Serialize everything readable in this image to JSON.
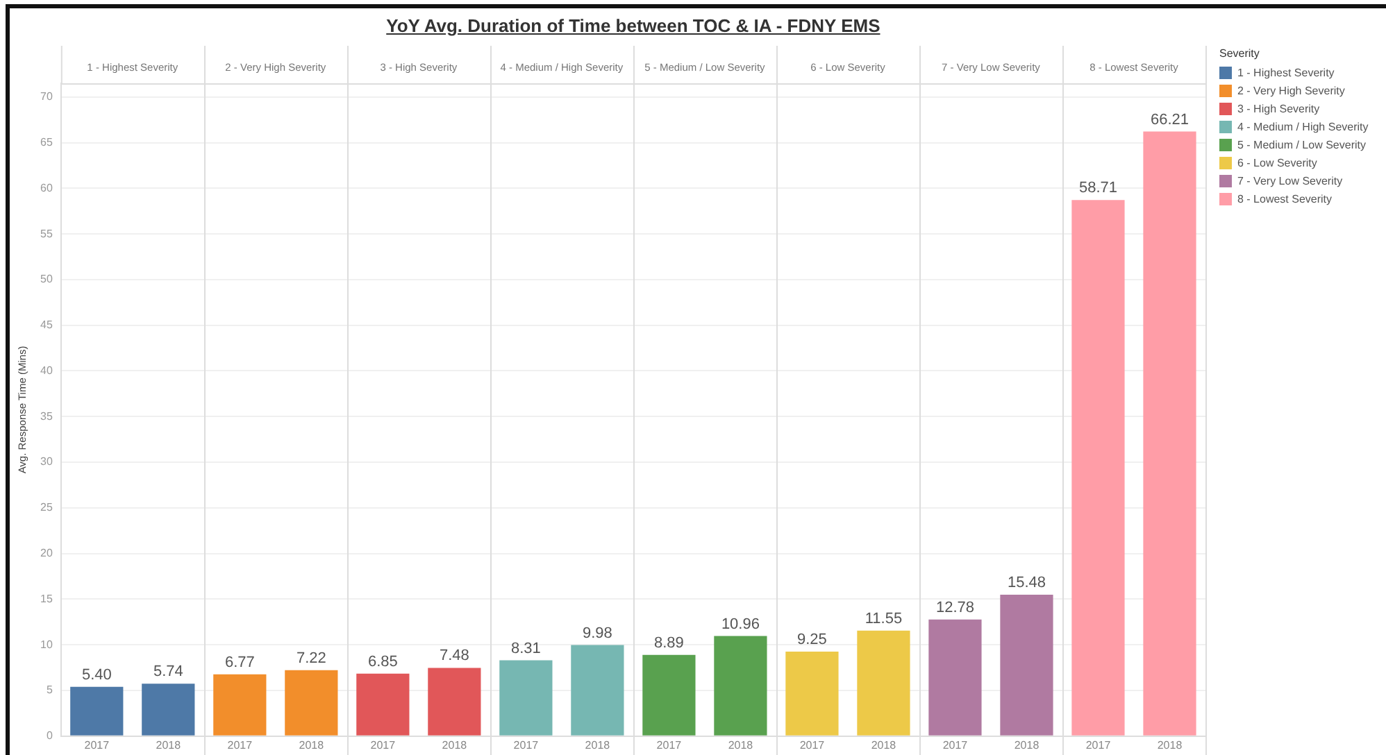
{
  "chart_data": {
    "type": "bar",
    "title": "YoY Avg. Duration of Time between TOC & IA - FDNY EMS",
    "ylabel": "Avg. Response Time (Mins)",
    "legend_title": "Severity",
    "categories": [
      "2017",
      "2018",
      "2017",
      "2018",
      "2017",
      "2018",
      "2017",
      "2018",
      "2017",
      "2018",
      "2017",
      "2018",
      "2017",
      "2018",
      "2017",
      "2018"
    ],
    "series": [
      {
        "name": "1 - Highest Severity",
        "color": "#4e79a7",
        "values": [
          5.4,
          5.74,
          null,
          null,
          null,
          null,
          null,
          null,
          null,
          null,
          null,
          null,
          null,
          null,
          null,
          null
        ],
        "value_labels": [
          "5.40",
          "5.74",
          null,
          null,
          null,
          null,
          null,
          null,
          null,
          null,
          null,
          null,
          null,
          null,
          null,
          null
        ]
      },
      {
        "name": "2 - Very High Severity",
        "color": "#f28e2b",
        "values": [
          null,
          null,
          6.77,
          7.22,
          null,
          null,
          null,
          null,
          null,
          null,
          null,
          null,
          null,
          null,
          null,
          null
        ],
        "value_labels": [
          null,
          null,
          "6.77",
          "7.22",
          null,
          null,
          null,
          null,
          null,
          null,
          null,
          null,
          null,
          null,
          null,
          null
        ]
      },
      {
        "name": "3 - High Severity",
        "color": "#e15759",
        "values": [
          null,
          null,
          null,
          null,
          6.85,
          7.48,
          null,
          null,
          null,
          null,
          null,
          null,
          null,
          null,
          null,
          null
        ],
        "value_labels": [
          null,
          null,
          null,
          null,
          "6.85",
          "7.48",
          null,
          null,
          null,
          null,
          null,
          null,
          null,
          null,
          null,
          null
        ]
      },
      {
        "name": "4 - Medium / High Severity",
        "color": "#76b7b2",
        "values": [
          null,
          null,
          null,
          null,
          null,
          null,
          8.31,
          9.98,
          null,
          null,
          null,
          null,
          null,
          null,
          null,
          null
        ],
        "value_labels": [
          null,
          null,
          null,
          null,
          null,
          null,
          "8.31",
          "9.98",
          null,
          null,
          null,
          null,
          null,
          null,
          null,
          null
        ]
      },
      {
        "name": "5 - Medium / Low Severity",
        "color": "#59a14f",
        "values": [
          null,
          null,
          null,
          null,
          null,
          null,
          null,
          null,
          8.89,
          10.96,
          null,
          null,
          null,
          null,
          null,
          null
        ],
        "value_labels": [
          null,
          null,
          null,
          null,
          null,
          null,
          null,
          null,
          "8.89",
          "10.96",
          null,
          null,
          null,
          null,
          null,
          null
        ]
      },
      {
        "name": "6 - Low Severity",
        "color": "#edc948",
        "values": [
          null,
          null,
          null,
          null,
          null,
          null,
          null,
          null,
          null,
          null,
          9.25,
          11.55,
          null,
          null,
          null,
          null
        ],
        "value_labels": [
          null,
          null,
          null,
          null,
          null,
          null,
          null,
          null,
          null,
          null,
          "9.25",
          "11.55",
          null,
          null,
          null,
          null
        ]
      },
      {
        "name": "7 - Very Low Severity",
        "color": "#b07aa1",
        "values": [
          null,
          null,
          null,
          null,
          null,
          null,
          null,
          null,
          null,
          null,
          null,
          null,
          12.78,
          15.48,
          null,
          null
        ],
        "value_labels": [
          null,
          null,
          null,
          null,
          null,
          null,
          null,
          null,
          null,
          null,
          null,
          null,
          "12.78",
          "15.48",
          null,
          null
        ]
      },
      {
        "name": "8 - Lowest Severity",
        "color": "#ff9da7",
        "values": [
          null,
          null,
          null,
          null,
          null,
          null,
          null,
          null,
          null,
          null,
          null,
          null,
          null,
          null,
          58.71,
          66.21
        ],
        "value_labels": [
          null,
          null,
          null,
          null,
          null,
          null,
          null,
          null,
          null,
          null,
          null,
          null,
          null,
          null,
          "58.71",
          "66.21"
        ]
      }
    ],
    "ylim": [
      0,
      71.5
    ],
    "yticks": [
      0,
      5,
      10,
      15,
      20,
      25,
      30,
      35,
      40,
      45,
      50,
      55,
      60,
      65,
      70
    ],
    "grid": "y",
    "legend": "right"
  }
}
